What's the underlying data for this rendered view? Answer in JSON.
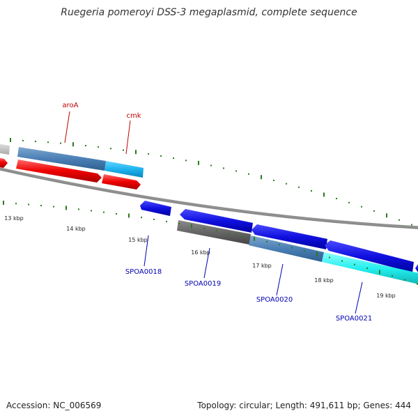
{
  "title": "Ruegeria pomeroyi DSS-3 megaplasmid, complete sequence",
  "footer": {
    "accession": "Accession: NC_006569",
    "summary": "Topology: circular; Length: 491,611 bp; Genes: 444"
  },
  "colors": {
    "forward_label": "#c00000",
    "reverse_label": "#0000b0",
    "tick": "#2a7a1f",
    "backbone": "#888888"
  },
  "kbp_labels": [
    "13 kbp",
    "14 kbp",
    "15 kbp",
    "16 kbp",
    "17 kbp",
    "18 kbp",
    "19 kbp"
  ],
  "gene_labels": {
    "forward": [
      "aroA",
      "cmk"
    ],
    "reverse": [
      "SPOA0018",
      "SPOA0019",
      "SPOA0020",
      "SPOA0021"
    ]
  }
}
